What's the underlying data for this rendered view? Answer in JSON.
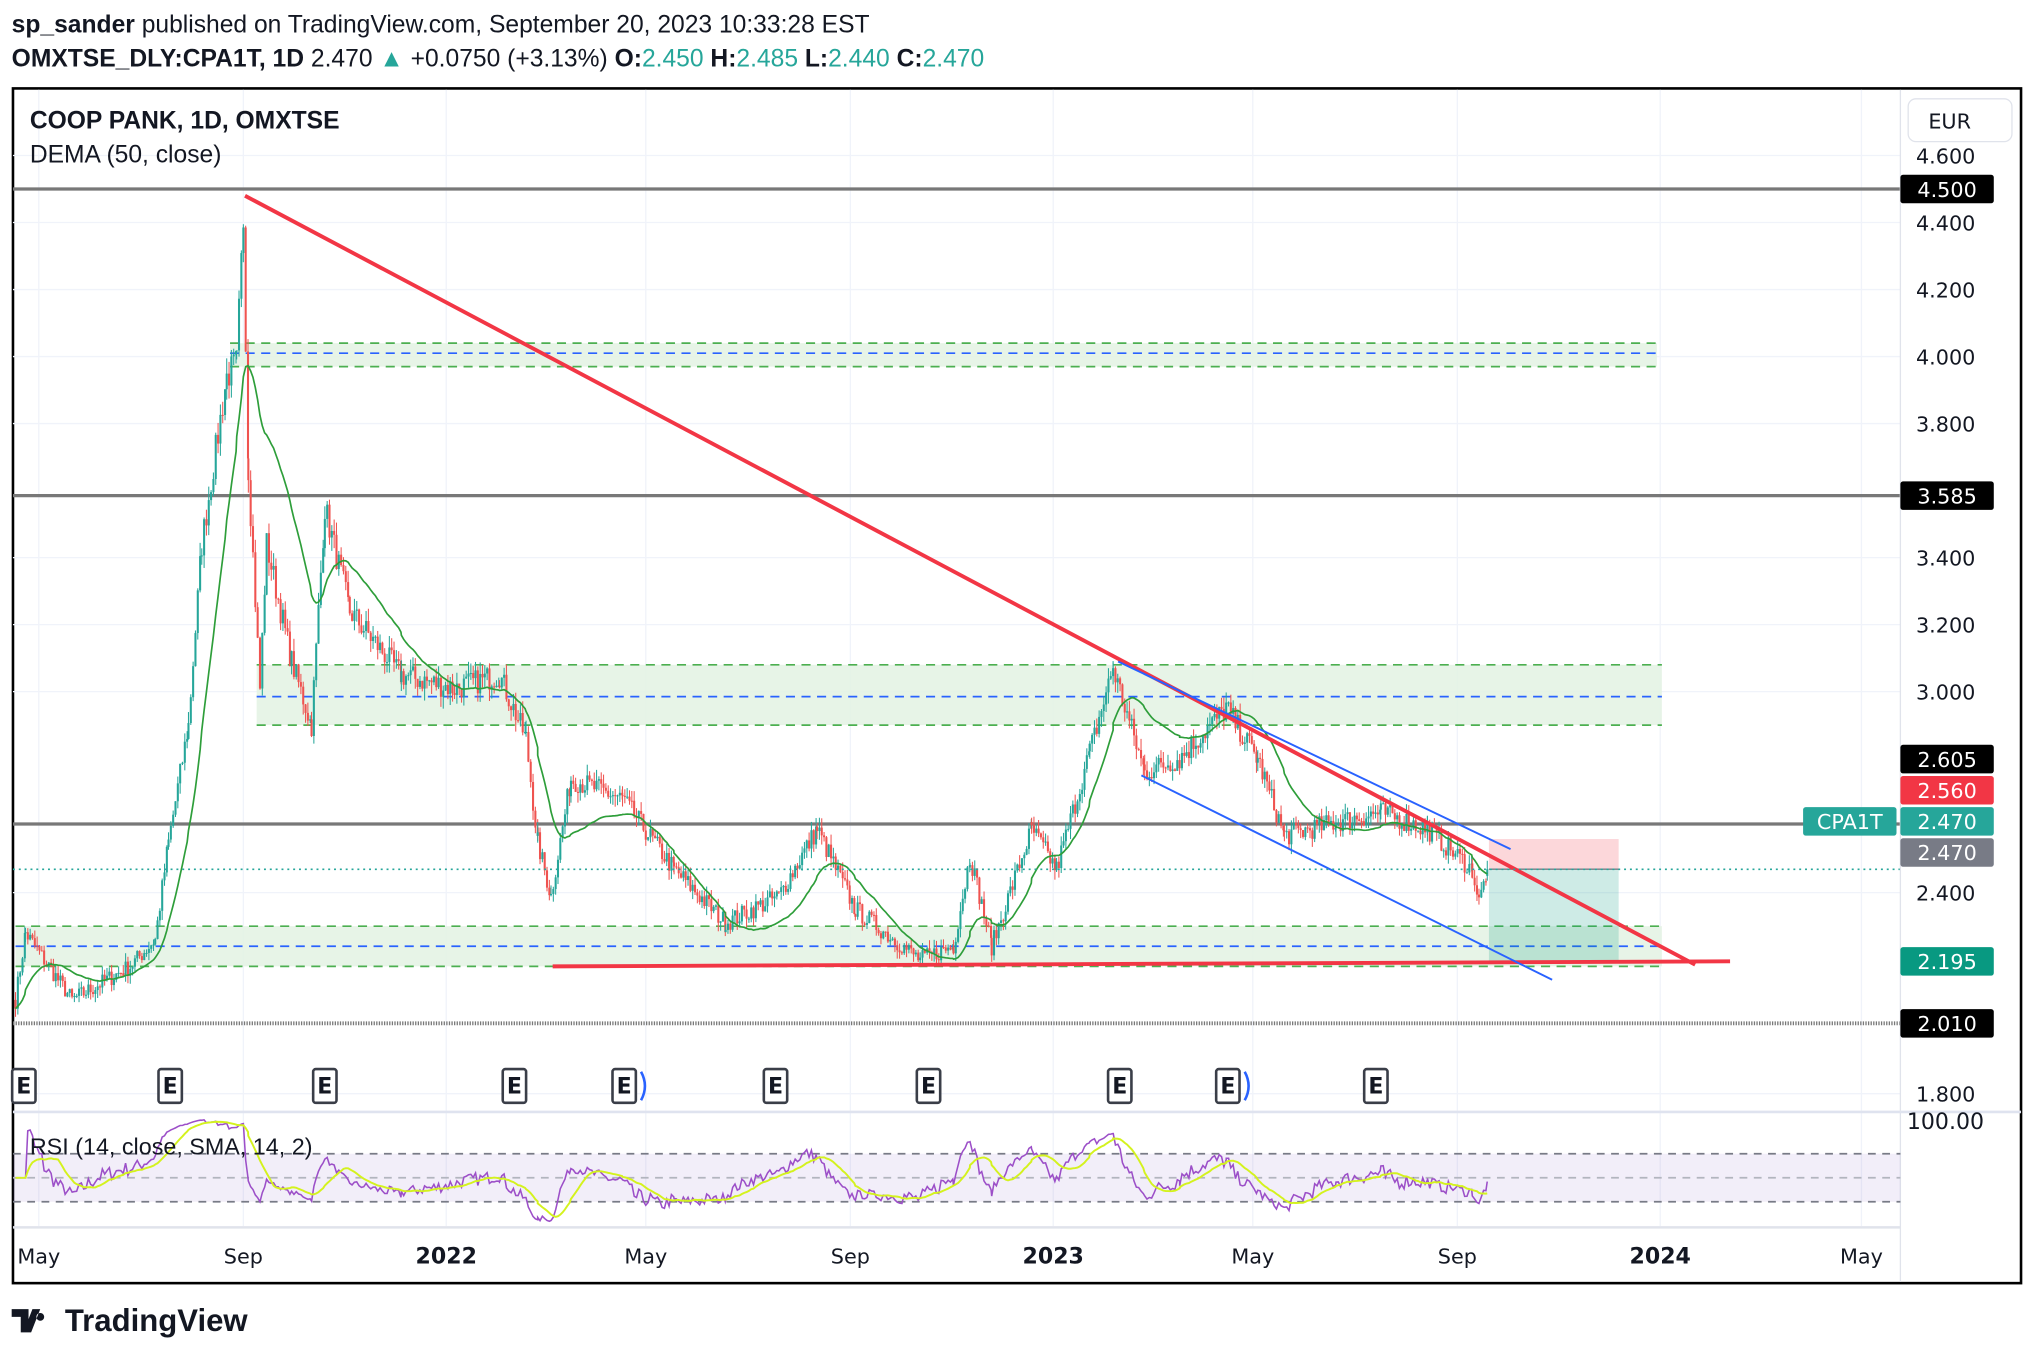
{
  "header": {
    "author": "sp_sander",
    "published": "published on TradingView.com, September 20, 2023 10:33:28 EST",
    "symbol": "OMXTSE_DLY:CPA1T, 1D",
    "last": "2.470",
    "change": "+0.0750 (+3.13%)",
    "o_label": "O:",
    "o": "2.450",
    "h_label": "H:",
    "h": "2.485",
    "l_label": "L:",
    "l": "2.440",
    "c_label": "C:",
    "c": "2.470"
  },
  "chart": {
    "title": "COOP PANK, 1D, OMXTSE",
    "indicator": "DEMA (50, close)",
    "currency": "EUR",
    "rsi_label": "RSI (14, close, SMA, 14, 2)",
    "rsi_axis_label": "100.00",
    "symbol_tag": "CPA1T",
    "earnings_marker": "E",
    "logo_text": "TradingView"
  },
  "colors": {
    "up": "#26a69a",
    "down": "#ef5350",
    "trend": "#f23645",
    "channel": "#2962ff",
    "dema": "#2e9e3a",
    "rsi": "#9c4fc8",
    "rsi_ma": "#d4f21e",
    "zone": "#e3f2e3",
    "zone_line": "#4caf50"
  },
  "chart_data": {
    "type": "candlestick",
    "y_ticks": [
      "4.600",
      "4.400",
      "4.200",
      "4.000",
      "3.800",
      "3.400",
      "3.200",
      "3.000",
      "2.400",
      "1.800"
    ],
    "x_ticks": [
      {
        "label": "May",
        "date": "2021-05-01",
        "bold": false
      },
      {
        "label": "Sep",
        "date": "2021-09-01",
        "bold": false
      },
      {
        "label": "2022",
        "date": "2022-01-01",
        "bold": true
      },
      {
        "label": "May",
        "date": "2022-05-01",
        "bold": false
      },
      {
        "label": "Sep",
        "date": "2022-09-01",
        "bold": false
      },
      {
        "label": "2023",
        "date": "2023-01-01",
        "bold": true
      },
      {
        "label": "May",
        "date": "2023-05-01",
        "bold": false
      },
      {
        "label": "Sep",
        "date": "2023-09-01",
        "bold": false
      },
      {
        "label": "2024",
        "date": "2024-01-01",
        "bold": true
      },
      {
        "label": "May",
        "date": "2024-05-01",
        "bold": false
      }
    ],
    "ylim": [
      1.75,
      4.65
    ],
    "price_path": [
      [
        "2021-04-17",
        2.08
      ],
      [
        "2021-04-23",
        2.28
      ],
      [
        "2021-05-21",
        2.08
      ],
      [
        "2021-06-25",
        2.18
      ],
      [
        "2021-07-10",
        2.26
      ],
      [
        "2021-07-18",
        2.55
      ],
      [
        "2021-07-30",
        2.9
      ],
      [
        "2021-08-07",
        3.44
      ],
      [
        "2021-08-22",
        3.94
      ],
      [
        "2021-08-28",
        3.98
      ],
      [
        "2021-09-01",
        4.41
      ],
      [
        "2021-09-04",
        3.67
      ],
      [
        "2021-09-11",
        3.01
      ],
      [
        "2021-09-15",
        3.44
      ],
      [
        "2021-09-30",
        3.09
      ],
      [
        "2021-10-12",
        2.9
      ],
      [
        "2021-10-20",
        3.55
      ],
      [
        "2021-11-04",
        3.24
      ],
      [
        "2021-12-05",
        3.05
      ],
      [
        "2022-01-06",
        3.01
      ],
      [
        "2022-02-02",
        3.05
      ],
      [
        "2022-02-18",
        2.86
      ],
      [
        "2022-02-25",
        2.55
      ],
      [
        "2022-03-05",
        2.39
      ],
      [
        "2022-03-17",
        2.74
      ],
      [
        "2022-04-17",
        2.68
      ],
      [
        "2022-05-18",
        2.47
      ],
      [
        "2022-06-18",
        2.31
      ],
      [
        "2022-07-20",
        2.39
      ],
      [
        "2022-08-12",
        2.59
      ],
      [
        "2022-09-04",
        2.35
      ],
      [
        "2022-10-13",
        2.2
      ],
      [
        "2022-11-02",
        2.24
      ],
      [
        "2022-11-12",
        2.51
      ],
      [
        "2022-11-25",
        2.24
      ],
      [
        "2022-12-19",
        2.59
      ],
      [
        "2023-01-03",
        2.47
      ],
      [
        "2023-01-23",
        2.82
      ],
      [
        "2023-02-06",
        3.07
      ],
      [
        "2023-02-25",
        2.76
      ],
      [
        "2023-03-18",
        2.8
      ],
      [
        "2023-04-15",
        2.95
      ],
      [
        "2023-05-04",
        2.8
      ],
      [
        "2023-05-20",
        2.57
      ],
      [
        "2023-06-20",
        2.61
      ],
      [
        "2023-07-17",
        2.64
      ],
      [
        "2023-08-14",
        2.59
      ],
      [
        "2023-09-10",
        2.47
      ],
      [
        "2023-09-14",
        2.37
      ],
      [
        "2023-09-19",
        2.47
      ]
    ],
    "horizontal_levels": [
      {
        "price": 4.5,
        "label": "4.500"
      },
      {
        "price": 3.585,
        "label": "3.585"
      },
      {
        "price": 2.605,
        "label": "2.605"
      },
      {
        "price": 2.01,
        "label": "2.010",
        "style": "dotted"
      }
    ],
    "zones": [
      {
        "top": 4.04,
        "mid": 4.01,
        "bottom": 3.97,
        "start": "2021-08-24",
        "end": "2023-12-30"
      },
      {
        "top": 3.08,
        "mid": 2.985,
        "bottom": 2.9,
        "start": "2021-09-09",
        "end": "2024-01-02"
      },
      {
        "top": 2.3,
        "mid": 2.24,
        "bottom": 2.18,
        "start": "2021-04-17",
        "end": "2024-01-02"
      }
    ],
    "trendlines": [
      {
        "name": "descending",
        "color": "trend",
        "from": [
          "2021-09-02",
          4.48
        ],
        "to": [
          "2024-01-22",
          2.185
        ]
      },
      {
        "name": "base",
        "color": "trend",
        "from": [
          "2022-03-06",
          2.18
        ],
        "to": [
          "2024-02-12",
          2.195
        ]
      },
      {
        "name": "channel-upper",
        "color": "channel",
        "from": [
          "2023-02-09",
          3.09
        ],
        "to": [
          "2023-10-03",
          2.53
        ]
      },
      {
        "name": "channel-lower",
        "color": "channel",
        "from": [
          "2023-02-23",
          2.75
        ],
        "to": [
          "2023-10-28",
          2.14
        ]
      }
    ],
    "position": {
      "entry": 2.47,
      "stop": 2.56,
      "target": 2.195,
      "start": "2023-09-20",
      "end": "2023-12-07",
      "stop_label": "2.560",
      "target_label": "2.195",
      "entry_label": "2.470"
    },
    "last_price_label": "2.470",
    "earnings_dates": [
      "2021-04-22",
      "2021-07-19",
      "2021-10-20",
      "2022-02-11",
      "2022-04-18",
      "2022-07-18",
      "2022-10-18",
      "2023-02-10",
      "2023-04-16",
      "2023-07-14"
    ],
    "rsi": {
      "levels": [
        70,
        50,
        30
      ],
      "ylim": [
        0,
        100
      ]
    }
  }
}
